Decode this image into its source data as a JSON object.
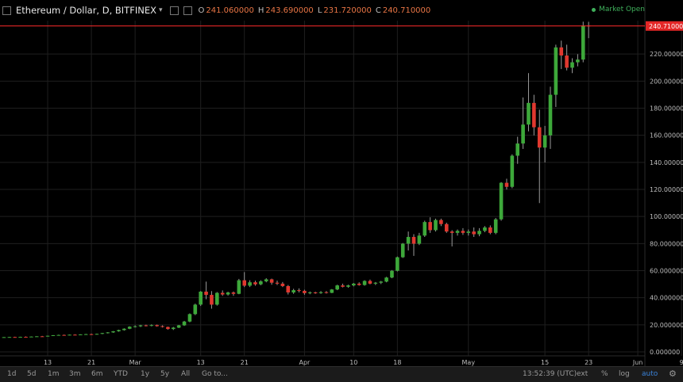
{
  "header": {
    "symbol": "Ethereum / Dollar, D, BITFINEX",
    "caret": "▾",
    "ohlc": [
      {
        "key": "O",
        "value": "241.060000"
      },
      {
        "key": "H",
        "value": "243.690000"
      },
      {
        "key": "L",
        "value": "231.720000"
      },
      {
        "key": "C",
        "value": "240.710000"
      }
    ],
    "market_status": "Market Open"
  },
  "bottom_bar": {
    "ranges": [
      "1d",
      "5d",
      "1m",
      "3m",
      "6m",
      "YTD",
      "1y",
      "5y",
      "All",
      "Go to..."
    ],
    "clock": "13:52:39 (UTC)",
    "options": [
      "ext",
      "%",
      "log",
      "auto"
    ]
  },
  "colors": {
    "up": "#3da83a",
    "down": "#e0382f",
    "wick": "#9a9a9a",
    "grid": "#1f1f1f",
    "price_line": "#ff2a2a",
    "price_label_bg": "#e32626",
    "background": "#000000"
  },
  "chart_data": {
    "type": "candlestick",
    "title": "Ethereum / Dollar, D, BITFINEX",
    "ylim": [
      0,
      245
    ],
    "y_ticks": [
      "0.000000",
      "20.000000",
      "40.000000",
      "60.000000",
      "80.000000",
      "100.000000",
      "120.000000",
      "140.000000",
      "160.000000",
      "180.000000",
      "200.000000",
      "220.000000"
    ],
    "y_tick_values": [
      0,
      20,
      40,
      60,
      80,
      100,
      120,
      140,
      160,
      180,
      200,
      220
    ],
    "x_ticks": [
      {
        "label": "13",
        "index": 8
      },
      {
        "label": "21",
        "index": 16
      },
      {
        "label": "Mar",
        "index": 24
      },
      {
        "label": "13",
        "index": 36
      },
      {
        "label": "21",
        "index": 44
      },
      {
        "label": "Apr",
        "index": 55
      },
      {
        "label": "10",
        "index": 64
      },
      {
        "label": "18",
        "index": 72
      },
      {
        "label": "May",
        "index": 85
      },
      {
        "label": "15",
        "index": 99
      },
      {
        "label": "23",
        "index": 107
      },
      {
        "label": "Jun",
        "index": 116
      },
      {
        "label": "9",
        "index": 124
      }
    ],
    "last_price": 240.71,
    "last_price_label": "240.710000",
    "candles": [
      [
        10.8,
        11.0,
        10.6,
        10.9
      ],
      [
        10.9,
        11.1,
        10.7,
        11.0
      ],
      [
        11.0,
        11.2,
        10.8,
        10.9
      ],
      [
        10.9,
        11.2,
        10.8,
        11.1
      ],
      [
        11.1,
        11.4,
        10.9,
        11.0
      ],
      [
        11.0,
        11.4,
        10.9,
        11.3
      ],
      [
        11.3,
        11.6,
        11.1,
        11.5
      ],
      [
        11.5,
        11.8,
        11.3,
        11.4
      ],
      [
        11.4,
        12.0,
        11.3,
        11.9
      ],
      [
        11.9,
        12.4,
        11.7,
        12.3
      ],
      [
        12.3,
        12.7,
        12.0,
        12.5
      ],
      [
        12.5,
        12.8,
        12.2,
        12.4
      ],
      [
        12.4,
        12.8,
        12.2,
        12.7
      ],
      [
        12.7,
        13.0,
        12.4,
        12.6
      ],
      [
        12.6,
        13.0,
        12.4,
        12.9
      ],
      [
        12.9,
        13.3,
        12.7,
        13.1
      ],
      [
        13.1,
        13.5,
        12.9,
        13.0
      ],
      [
        13.0,
        13.5,
        12.8,
        13.3
      ],
      [
        13.3,
        14.0,
        13.1,
        13.9
      ],
      [
        13.9,
        14.6,
        13.6,
        14.4
      ],
      [
        14.4,
        15.4,
        14.1,
        15.2
      ],
      [
        15.2,
        16.4,
        14.9,
        16.1
      ],
      [
        16.1,
        17.4,
        15.7,
        17.1
      ],
      [
        17.1,
        18.9,
        16.8,
        18.6
      ],
      [
        18.6,
        19.6,
        18.0,
        18.9
      ],
      [
        18.9,
        20.0,
        18.4,
        19.6
      ],
      [
        19.6,
        20.1,
        18.8,
        19.2
      ],
      [
        19.2,
        20.3,
        18.9,
        19.8
      ],
      [
        19.8,
        20.2,
        18.6,
        19.0
      ],
      [
        19.0,
        19.6,
        18.0,
        18.4
      ],
      [
        18.4,
        18.7,
        16.4,
        16.9
      ],
      [
        16.9,
        18.4,
        16.2,
        17.9
      ],
      [
        17.9,
        19.9,
        17.6,
        19.6
      ],
      [
        19.6,
        22.9,
        19.2,
        22.4
      ],
      [
        22.4,
        28.4,
        21.9,
        27.9
      ],
      [
        27.9,
        35.6,
        27.2,
        34.9
      ],
      [
        34.9,
        44.9,
        33.9,
        44.5
      ],
      [
        44.5,
        51.9,
        38.9,
        42.1
      ],
      [
        42.1,
        44.9,
        31.9,
        34.9
      ],
      [
        34.9,
        44.2,
        34.2,
        43.6
      ],
      [
        43.6,
        45.4,
        41.4,
        42.4
      ],
      [
        42.4,
        44.4,
        41.6,
        43.9
      ],
      [
        43.9,
        44.6,
        41.4,
        42.9
      ],
      [
        42.9,
        53.9,
        42.6,
        52.9
      ],
      [
        52.9,
        58.9,
        47.9,
        48.9
      ],
      [
        48.9,
        52.9,
        47.9,
        51.4
      ],
      [
        51.4,
        52.6,
        48.9,
        49.9
      ],
      [
        49.9,
        52.9,
        49.2,
        52.1
      ],
      [
        52.1,
        54.4,
        51.4,
        53.6
      ],
      [
        53.6,
        54.1,
        49.6,
        51.1
      ],
      [
        51.1,
        52.6,
        49.4,
        50.4
      ],
      [
        50.4,
        51.6,
        47.9,
        48.6
      ],
      [
        48.6,
        49.4,
        42.4,
        43.9
      ],
      [
        43.9,
        46.6,
        42.9,
        45.6
      ],
      [
        45.6,
        46.9,
        43.9,
        45.1
      ],
      [
        45.1,
        45.9,
        42.2,
        43.4
      ],
      [
        43.4,
        44.6,
        42.6,
        43.9
      ],
      [
        43.9,
        44.4,
        42.9,
        43.4
      ],
      [
        43.4,
        44.9,
        42.9,
        44.1
      ],
      [
        44.1,
        44.9,
        43.1,
        43.6
      ],
      [
        43.6,
        46.4,
        43.4,
        46.1
      ],
      [
        46.1,
        49.6,
        45.6,
        49.1
      ],
      [
        49.1,
        50.4,
        47.6,
        48.1
      ],
      [
        48.1,
        49.6,
        47.4,
        49.1
      ],
      [
        49.1,
        50.9,
        48.4,
        50.4
      ],
      [
        50.4,
        51.4,
        48.9,
        49.4
      ],
      [
        49.4,
        52.9,
        48.9,
        52.4
      ],
      [
        52.4,
        53.4,
        49.9,
        50.4
      ],
      [
        50.4,
        51.6,
        49.4,
        51.1
      ],
      [
        51.1,
        52.4,
        50.1,
        51.9
      ],
      [
        51.9,
        55.4,
        51.4,
        54.9
      ],
      [
        54.9,
        60.4,
        54.4,
        59.9
      ],
      [
        59.9,
        70.4,
        59.4,
        69.9
      ],
      [
        69.9,
        80.4,
        69.4,
        79.9
      ],
      [
        79.9,
        88.9,
        74.9,
        84.9
      ],
      [
        84.9,
        86.9,
        70.9,
        79.9
      ],
      [
        79.9,
        87.9,
        78.9,
        85.9
      ],
      [
        85.9,
        96.9,
        84.9,
        95.9
      ],
      [
        95.9,
        99.4,
        87.9,
        89.9
      ],
      [
        89.9,
        98.4,
        88.9,
        97.4
      ],
      [
        97.4,
        98.4,
        92.9,
        94.4
      ],
      [
        94.4,
        95.4,
        87.9,
        88.9
      ],
      [
        88.9,
        89.9,
        77.9,
        87.9
      ],
      [
        87.9,
        90.4,
        85.9,
        89.4
      ],
      [
        89.4,
        91.4,
        86.4,
        87.9
      ],
      [
        87.9,
        90.4,
        85.9,
        88.9
      ],
      [
        88.9,
        91.9,
        84.9,
        86.9
      ],
      [
        86.9,
        91.4,
        85.4,
        89.4
      ],
      [
        89.4,
        92.9,
        88.4,
        91.9
      ],
      [
        91.9,
        93.4,
        86.9,
        87.9
      ],
      [
        87.9,
        98.9,
        86.9,
        97.9
      ],
      [
        97.9,
        125.4,
        96.9,
        124.9
      ],
      [
        124.9,
        127.9,
        119.9,
        121.9
      ],
      [
        121.9,
        145.9,
        120.9,
        144.9
      ],
      [
        144.9,
        158.9,
        138.9,
        153.9
      ],
      [
        153.9,
        187.9,
        149.9,
        167.9
      ],
      [
        167.9,
        205.9,
        162.9,
        183.9
      ],
      [
        183.9,
        189.9,
        159.9,
        165.9
      ],
      [
        165.9,
        178.9,
        109.9,
        150.9
      ],
      [
        150.9,
        166.9,
        139.9,
        159.9
      ],
      [
        159.9,
        195.9,
        149.9,
        189.9
      ],
      [
        189.9,
        226.9,
        180.9,
        224.9
      ],
      [
        224.9,
        229.9,
        208.9,
        218.9
      ],
      [
        218.9,
        226.9,
        207.9,
        209.9
      ],
      [
        209.9,
        216.9,
        205.9,
        213.9
      ],
      [
        213.9,
        219.9,
        210.9,
        215.9
      ],
      [
        215.9,
        243.9,
        213.9,
        241.06
      ],
      [
        241.06,
        243.69,
        231.72,
        240.71
      ]
    ]
  }
}
